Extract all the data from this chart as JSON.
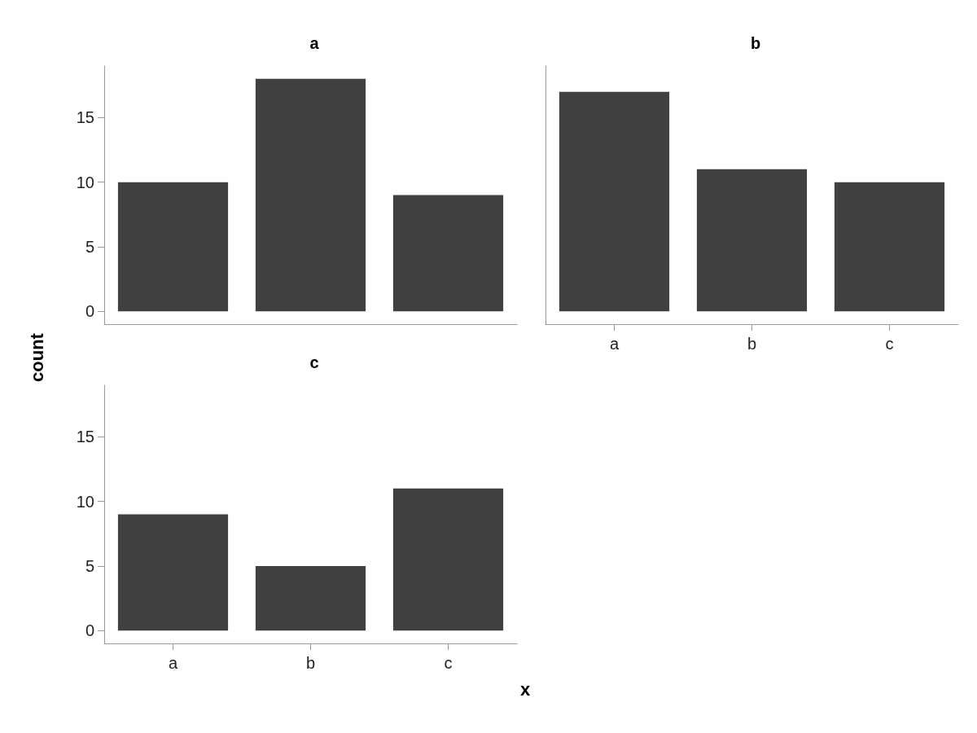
{
  "chart_data": [
    {
      "type": "bar",
      "title": "a",
      "categories": [
        null,
        null,
        null
      ],
      "values": [
        10,
        18,
        9
      ],
      "color": "#404040",
      "ylim": [
        -1,
        19
      ],
      "yticks": [
        0,
        5,
        10,
        15
      ],
      "tick_labels": "y"
    },
    {
      "type": "bar",
      "title": "b",
      "categories": [
        "a",
        "b",
        "c"
      ],
      "values": [
        17,
        11,
        10
      ],
      "color": "#404040",
      "ylim": [
        -1,
        19
      ],
      "yticks": [
        0,
        5,
        10,
        15
      ],
      "tick_labels": "x"
    },
    {
      "type": "bar",
      "title": "c",
      "categories": [
        "a",
        "b",
        "c"
      ],
      "values": [
        9,
        5,
        11
      ],
      "color": "#404040",
      "ylim": [
        -1,
        19
      ],
      "yticks": [
        0,
        5,
        10,
        15
      ],
      "xlabel": "x",
      "ylabel": "count"
    }
  ]
}
